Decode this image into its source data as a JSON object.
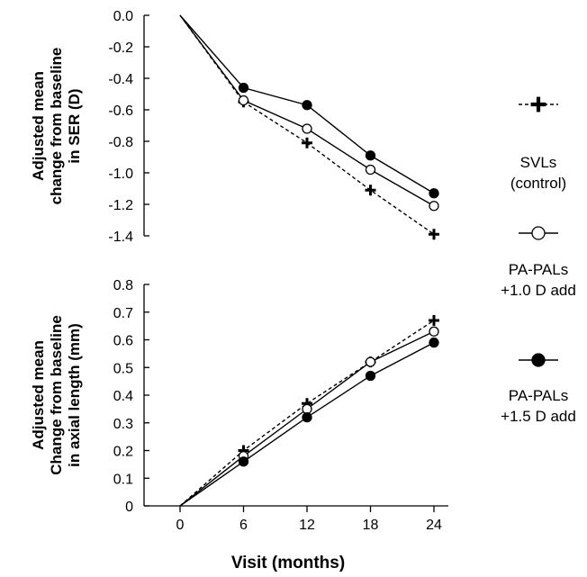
{
  "chart_data": [
    {
      "type": "line",
      "ylabel_lines": [
        "Adjusted mean",
        "change from baseline",
        "in SER (D)"
      ],
      "ylim": [
        -1.4,
        0.0
      ],
      "yticks": [
        0.0,
        -0.2,
        -0.4,
        -0.6,
        -0.8,
        -1.0,
        -1.2,
        -1.4
      ],
      "ytick_labels": [
        "0.0",
        "-0.2",
        "-0.4",
        "-0.6",
        "-0.8",
        "-1.0",
        "-1.2",
        "-1.4"
      ],
      "x": [
        0,
        6,
        12,
        18,
        24
      ],
      "series": [
        {
          "key": "svl",
          "name": "SVLs (control)",
          "values": [
            0.0,
            -0.55,
            -0.81,
            -1.11,
            -1.39
          ]
        },
        {
          "key": "pal10",
          "name": "PA-PALs +1.0 D add",
          "values": [
            0.0,
            -0.54,
            -0.72,
            -0.98,
            -1.21
          ]
        },
        {
          "key": "pal15",
          "name": "PA-PALs +1.5 D add",
          "values": [
            0.0,
            -0.46,
            -0.57,
            -0.89,
            -1.13
          ]
        }
      ]
    },
    {
      "type": "line",
      "ylabel_lines": [
        "Adjusted mean",
        "Change from baseline",
        "in axial length (mm)"
      ],
      "ylim": [
        0,
        0.8
      ],
      "yticks": [
        0,
        0.1,
        0.2,
        0.3,
        0.4,
        0.5,
        0.6,
        0.7,
        0.8
      ],
      "ytick_labels": [
        "0",
        "0.1",
        "0.2",
        "0.3",
        "0.4",
        "0.5",
        "0.6",
        "0.7",
        "0.8"
      ],
      "x": [
        0,
        6,
        12,
        18,
        24
      ],
      "xtick_labels": [
        "0",
        "6",
        "12",
        "18",
        "24"
      ],
      "xlabel": "Visit (months)",
      "series": [
        {
          "key": "svl",
          "name": "SVLs (control)",
          "values": [
            0.0,
            0.2,
            0.37,
            0.52,
            0.67
          ]
        },
        {
          "key": "pal10",
          "name": "PA-PALs +1.0 D add",
          "values": [
            0.0,
            0.18,
            0.35,
            0.52,
            0.63
          ]
        },
        {
          "key": "pal15",
          "name": "PA-PALs +1.5 D add",
          "values": [
            0.0,
            0.16,
            0.32,
            0.47,
            0.59
          ]
        }
      ]
    }
  ],
  "legend": [
    {
      "key": "svl",
      "lines": [
        "SVLs",
        "(control)"
      ],
      "marker": "plus",
      "line_style": "dashed"
    },
    {
      "key": "pal10",
      "lines": [
        "PA-PALs",
        "+1.0 D add"
      ],
      "marker": "open-circle",
      "line_style": "solid"
    },
    {
      "key": "pal15",
      "lines": [
        "PA-PALs",
        "+1.5 D add"
      ],
      "marker": "filled-circle",
      "line_style": "solid"
    }
  ]
}
